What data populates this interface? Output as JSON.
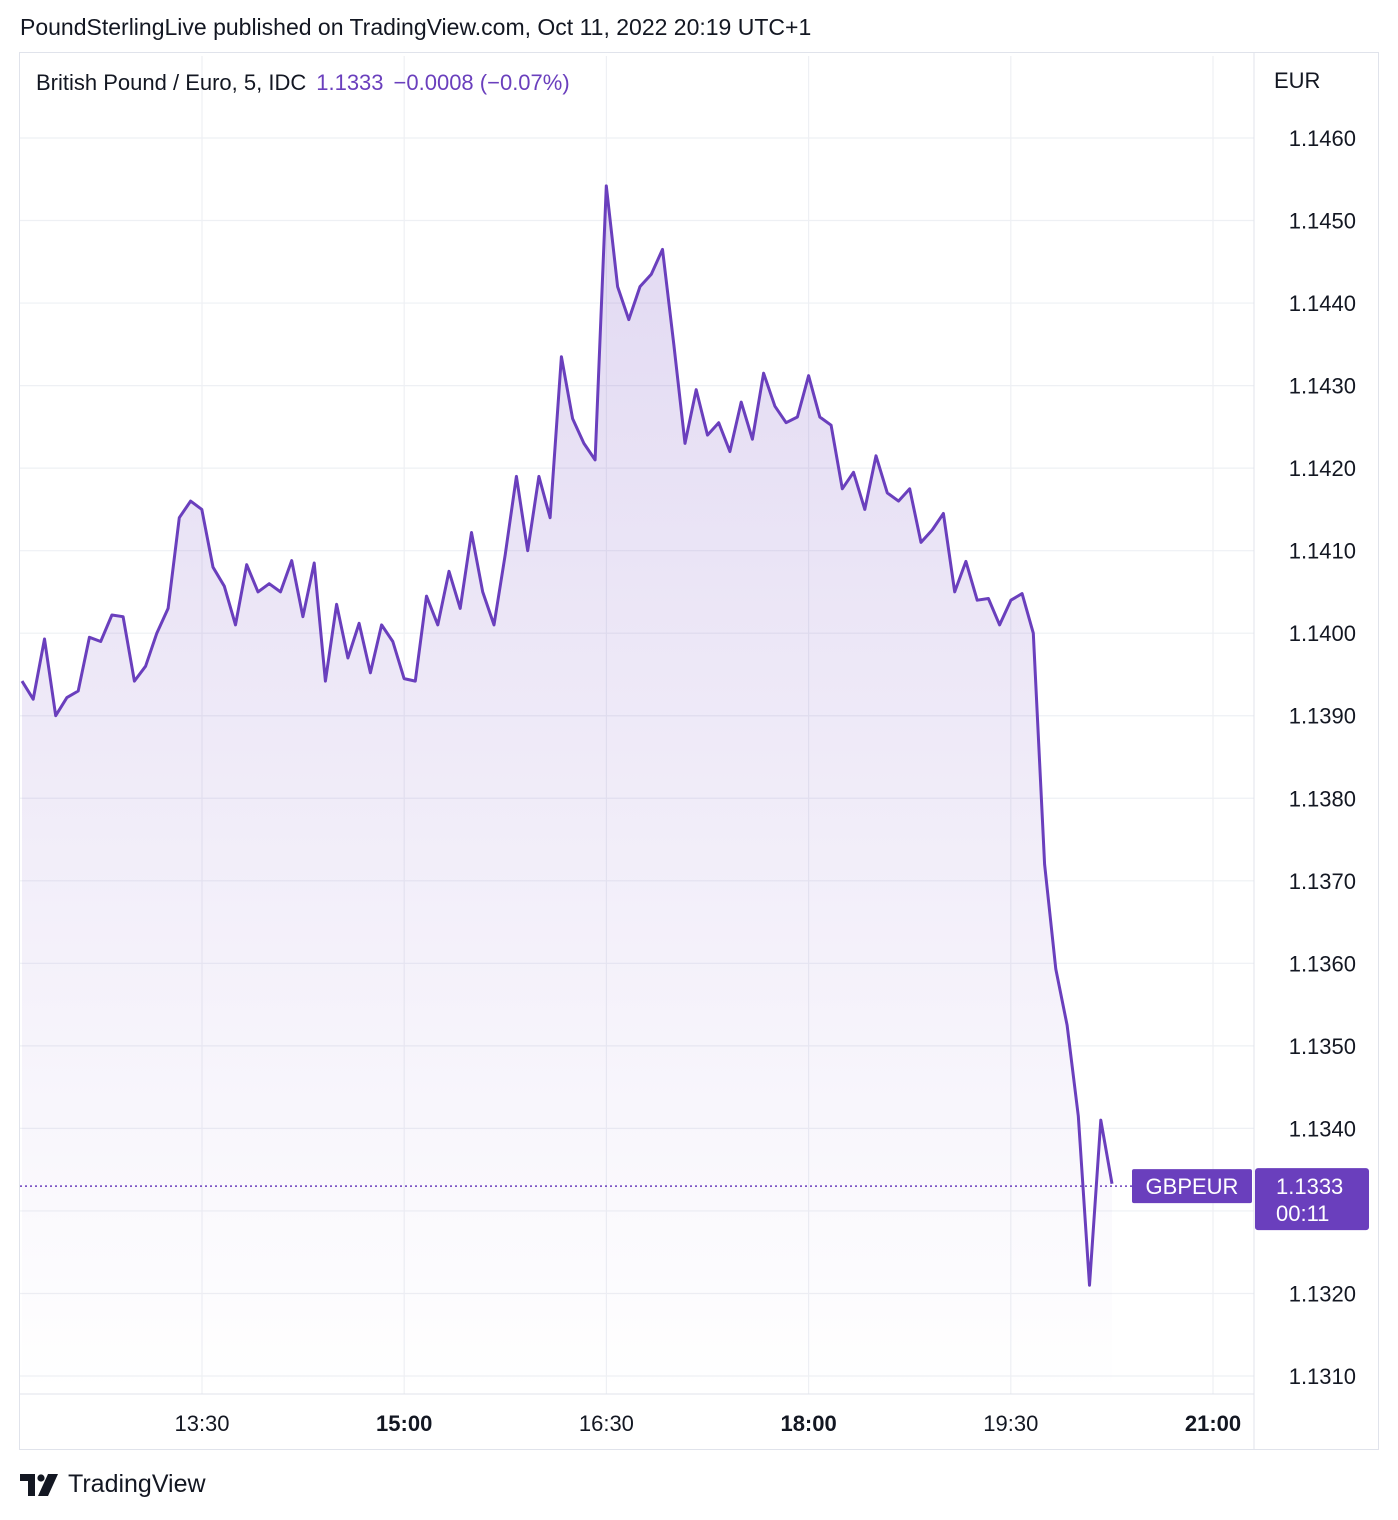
{
  "header": {
    "publisher_line": "PoundSterlingLive published on TradingView.com, Oct 11, 2022 20:19 UTC+1"
  },
  "legend": {
    "symbol": "British Pound / Euro, 5, IDC",
    "last": "1.1333",
    "change": "−0.0008 (−0.07%)"
  },
  "footer": {
    "brand": "TradingView",
    "logo_icon": "tradingview-logo-icon"
  },
  "colors": {
    "line": "#6a3fbd",
    "badge": "#6a3fbd",
    "grid": "#eef0f4"
  },
  "chart_data": {
    "type": "area",
    "currency_label": "EUR",
    "x_start": "12:00",
    "x_interval_minutes": 5,
    "x_ticks": [
      {
        "label": "13:30",
        "minutes": 90,
        "bold": false
      },
      {
        "label": "15:00",
        "minutes": 180,
        "bold": true
      },
      {
        "label": "16:30",
        "minutes": 270,
        "bold": false
      },
      {
        "label": "18:00",
        "minutes": 360,
        "bold": true
      },
      {
        "label": "19:30",
        "minutes": 450,
        "bold": false
      },
      {
        "label": "21:00",
        "minutes": 540,
        "bold": true
      }
    ],
    "y_ticks": [
      "1.1460",
      "1.1450",
      "1.1440",
      "1.1430",
      "1.1420",
      "1.1410",
      "1.1400",
      "1.1390",
      "1.1380",
      "1.1370",
      "1.1360",
      "1.1350",
      "1.1340",
      "1.1320",
      "1.1310"
    ],
    "ylim": [
      1.1306,
      1.1474
    ],
    "xlim_minutes": [
      0,
      548
    ],
    "series": [
      {
        "name": "GBPEUR",
        "values": [
          1.13942,
          1.1392,
          1.13993,
          1.139,
          1.13922,
          1.1393,
          1.13995,
          1.1399,
          1.14022,
          1.1402,
          1.13942,
          1.1396,
          1.14,
          1.1403,
          1.1414,
          1.1416,
          1.1415,
          1.1408,
          1.14057,
          1.1401,
          1.14083,
          1.1405,
          1.1406,
          1.1405,
          1.14088,
          1.1402,
          1.14085,
          1.13942,
          1.14035,
          1.1397,
          1.14012,
          1.13952,
          1.1401,
          1.1399,
          1.13945,
          1.13942,
          1.14045,
          1.1401,
          1.14075,
          1.1403,
          1.14122,
          1.1405,
          1.1401,
          1.14095,
          1.1419,
          1.141,
          1.1419,
          1.1414,
          1.14335,
          1.1426,
          1.1423,
          1.1421,
          1.14542,
          1.1442,
          1.1438,
          1.1442,
          1.14435,
          1.14465,
          1.1435,
          1.1423,
          1.14295,
          1.1424,
          1.14255,
          1.1422,
          1.1428,
          1.14235,
          1.14315,
          1.14275,
          1.14255,
          1.14262,
          1.14312,
          1.14262,
          1.14252,
          1.14175,
          1.14195,
          1.1415,
          1.14215,
          1.1417,
          1.1416,
          1.14175,
          1.1411,
          1.14125,
          1.14145,
          1.1405,
          1.14087,
          1.1404,
          1.14042,
          1.1401,
          1.1404,
          1.14048,
          1.14,
          1.1372,
          1.13593,
          1.13525,
          1.13415,
          1.1321,
          1.1341,
          1.13333
        ]
      }
    ],
    "last_price": {
      "symbol_label": "GBPEUR",
      "value_label": "1.1333",
      "countdown": "00:11",
      "value": 1.1333
    },
    "grid": true
  }
}
